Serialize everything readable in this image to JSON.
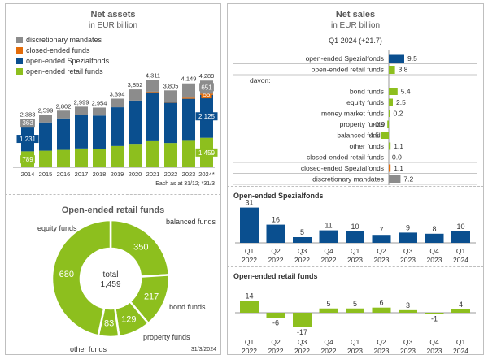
{
  "colors": {
    "discretionary": "#8c8c8c",
    "closed": "#e36c0a",
    "spezial": "#0a4f8f",
    "retail": "#8dbf1e"
  },
  "net_assets": {
    "title": "Net assets",
    "subtitle": "in EUR billion",
    "note": "Each as at 31/12; *31/3",
    "legend": [
      "discretionary mandates",
      "closed-ended funds",
      "open-ended Spezialfonds",
      "open-ended retail funds"
    ]
  },
  "retail_pie": {
    "title": "Open-ended retail funds",
    "center_label": "total",
    "center_value": "1,459",
    "date": "31/3/2024"
  },
  "net_sales": {
    "title": "Net sales",
    "subtitle": "in EUR billion",
    "period": "Q1 2024 (+21.7)"
  },
  "spezial_q": {
    "title": "Open-ended Spezialfonds"
  },
  "retail_q": {
    "title": "Open-ended retail funds"
  },
  "chart_data": [
    {
      "type": "bar",
      "title": "Net assets",
      "categories": [
        "2014",
        "2015",
        "2016",
        "2017",
        "2018",
        "2019",
        "2020",
        "2021",
        "2022",
        "2023",
        "2024*"
      ],
      "totals": [
        "2,383",
        "2,599",
        "2,802",
        "2,999",
        "2,954",
        "3,394",
        "3,852",
        "4,311",
        "3,805",
        "4,149",
        "4,289"
      ],
      "series": [
        {
          "name": "open-ended retail funds",
          "values": [
            789,
            820,
            860,
            930,
            900,
            1050,
            1160,
            1330,
            1200,
            1350,
            1459
          ],
          "label_index": {
            "0": "789",
            "10": "1,459"
          }
        },
        {
          "name": "open-ended Spezialfonds",
          "values": [
            1231,
            1400,
            1560,
            1680,
            1660,
            1920,
            2140,
            2380,
            2000,
            2040,
            2125
          ],
          "label_index": {
            "0": "1,231",
            "10": "2,125"
          }
        },
        {
          "name": "closed-ended funds",
          "values": [
            0,
            0,
            0,
            0,
            0,
            0,
            0,
            30,
            40,
            50,
            55
          ],
          "label_index": {
            "10": "55"
          }
        },
        {
          "name": "discretionary mandates",
          "values": [
            363,
            379,
            382,
            389,
            394,
            424,
            552,
            571,
            565,
            709,
            651
          ],
          "label_index": {
            "0": "363",
            "10": "651"
          }
        }
      ],
      "ylim": [
        0,
        4500
      ]
    },
    {
      "type": "pie",
      "title": "Open-ended retail funds",
      "labels": [
        "balanced funds",
        "bond funds",
        "property funds",
        "other funds",
        "equity funds"
      ],
      "values": [
        350,
        217,
        129,
        83,
        680
      ]
    },
    {
      "type": "bar",
      "title": "Net sales",
      "categories": [
        "open-ended Spezialfonds",
        "open-ended retail funds",
        "davon:",
        "bond funds",
        "equity funds",
        "money market funds",
        "property funds",
        "balanced funds",
        "other funds",
        "closed-ended retail funds",
        "closed-ended Spezialfonds",
        "discretionary mandates"
      ],
      "values": [
        9.5,
        3.8,
        null,
        5.4,
        2.5,
        0.2,
        -0.9,
        -4.5,
        1.1,
        0.0,
        1.1,
        7.2
      ],
      "value_labels": [
        "9.5",
        "3.8",
        "",
        "5.4",
        "2.5",
        "0.2",
        "-0.9",
        "-4.5",
        "1.1",
        "0.0",
        "1.1",
        "7.2"
      ],
      "bar_colors": [
        "spezial",
        "retail",
        "",
        "retail",
        "retail",
        "retail",
        "retail",
        "retail",
        "retail",
        "retail",
        "closed",
        "discretionary"
      ]
    },
    {
      "type": "bar",
      "title": "Open-ended Spezialfonds",
      "categories": [
        [
          "Q1",
          "2022"
        ],
        [
          "Q2",
          "2022"
        ],
        [
          "Q3",
          "2022"
        ],
        [
          "Q4",
          "2022"
        ],
        [
          "Q1",
          "2023"
        ],
        [
          "Q2",
          "2023"
        ],
        [
          "Q3",
          "2023"
        ],
        [
          "Q4",
          "2023"
        ],
        [
          "Q1",
          "2024"
        ]
      ],
      "values": [
        31,
        16,
        5,
        11,
        10,
        7,
        9,
        8,
        10
      ]
    },
    {
      "type": "bar",
      "title": "Open-ended retail funds",
      "categories": [
        [
          "Q1",
          "2022"
        ],
        [
          "Q2",
          "2022"
        ],
        [
          "Q3",
          "2022"
        ],
        [
          "Q4",
          "2022"
        ],
        [
          "Q1",
          "2023"
        ],
        [
          "Q2",
          "2023"
        ],
        [
          "Q3",
          "2023"
        ],
        [
          "Q4",
          "2023"
        ],
        [
          "Q1",
          "2024"
        ]
      ],
      "values": [
        14,
        -6,
        -17,
        5,
        5,
        6,
        3,
        -1,
        4
      ]
    }
  ]
}
